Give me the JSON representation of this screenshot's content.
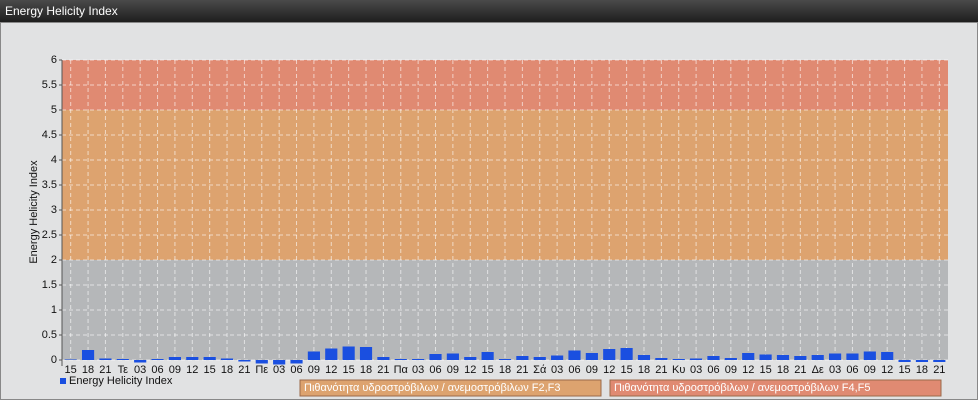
{
  "window_title": "Energy Helicity Index",
  "chart_data": {
    "type": "bar",
    "y_label": "Energy Helicity Index",
    "categories": [
      "15",
      "18",
      "21",
      "Τε",
      "03",
      "06",
      "09",
      "12",
      "15",
      "18",
      "21",
      "Πε",
      "03",
      "06",
      "09",
      "12",
      "15",
      "18",
      "21",
      "Πα",
      "03",
      "06",
      "09",
      "12",
      "15",
      "18",
      "21",
      "Σά",
      "03",
      "06",
      "09",
      "12",
      "15",
      "18",
      "21",
      "Κυ",
      "03",
      "06",
      "09",
      "12",
      "15",
      "18",
      "21",
      "Δε",
      "03",
      "06",
      "09",
      "12",
      "15",
      "18",
      "21"
    ],
    "series": [
      {
        "name": "Energy Helicity Index",
        "color": "#1a4fe0",
        "values": [
          0.01,
          0.2,
          0.03,
          0.02,
          -0.05,
          0.02,
          0.06,
          0.06,
          0.06,
          0.03,
          -0.03,
          -0.07,
          -0.09,
          -0.07,
          0.17,
          0.23,
          0.27,
          0.26,
          0.06,
          0.02,
          0.02,
          0.12,
          0.13,
          0.06,
          0.16,
          0.02,
          0.08,
          0.06,
          0.09,
          0.19,
          0.14,
          0.22,
          0.24,
          0.1,
          0.04,
          0.02,
          0.03,
          0.08,
          0.04,
          0.14,
          0.11,
          0.1,
          0.08,
          0.1,
          0.13,
          0.13,
          0.17,
          0.16,
          -0.04,
          -0.04,
          -0.04
        ]
      }
    ],
    "ylim": [
      0,
      6
    ],
    "yticks": [
      0,
      0.5,
      1,
      1.5,
      2,
      2.5,
      3,
      3.5,
      4,
      4.5,
      5,
      5.5,
      6
    ],
    "grid": true,
    "bands": [
      {
        "from": 0,
        "to": 2,
        "color": "#b5b7b9"
      },
      {
        "from": 2,
        "to": 5,
        "color": "#dda36f",
        "label": "Πιθανότητα υδροστρόβιλων / ανεμοστρόβιλων F2,F3"
      },
      {
        "from": 5,
        "to": 6,
        "color": "#e08a72",
        "label": "Πιθανότητα υδροστρόβιλων / ανεμοστρόβιλων F4,F5"
      }
    ]
  }
}
